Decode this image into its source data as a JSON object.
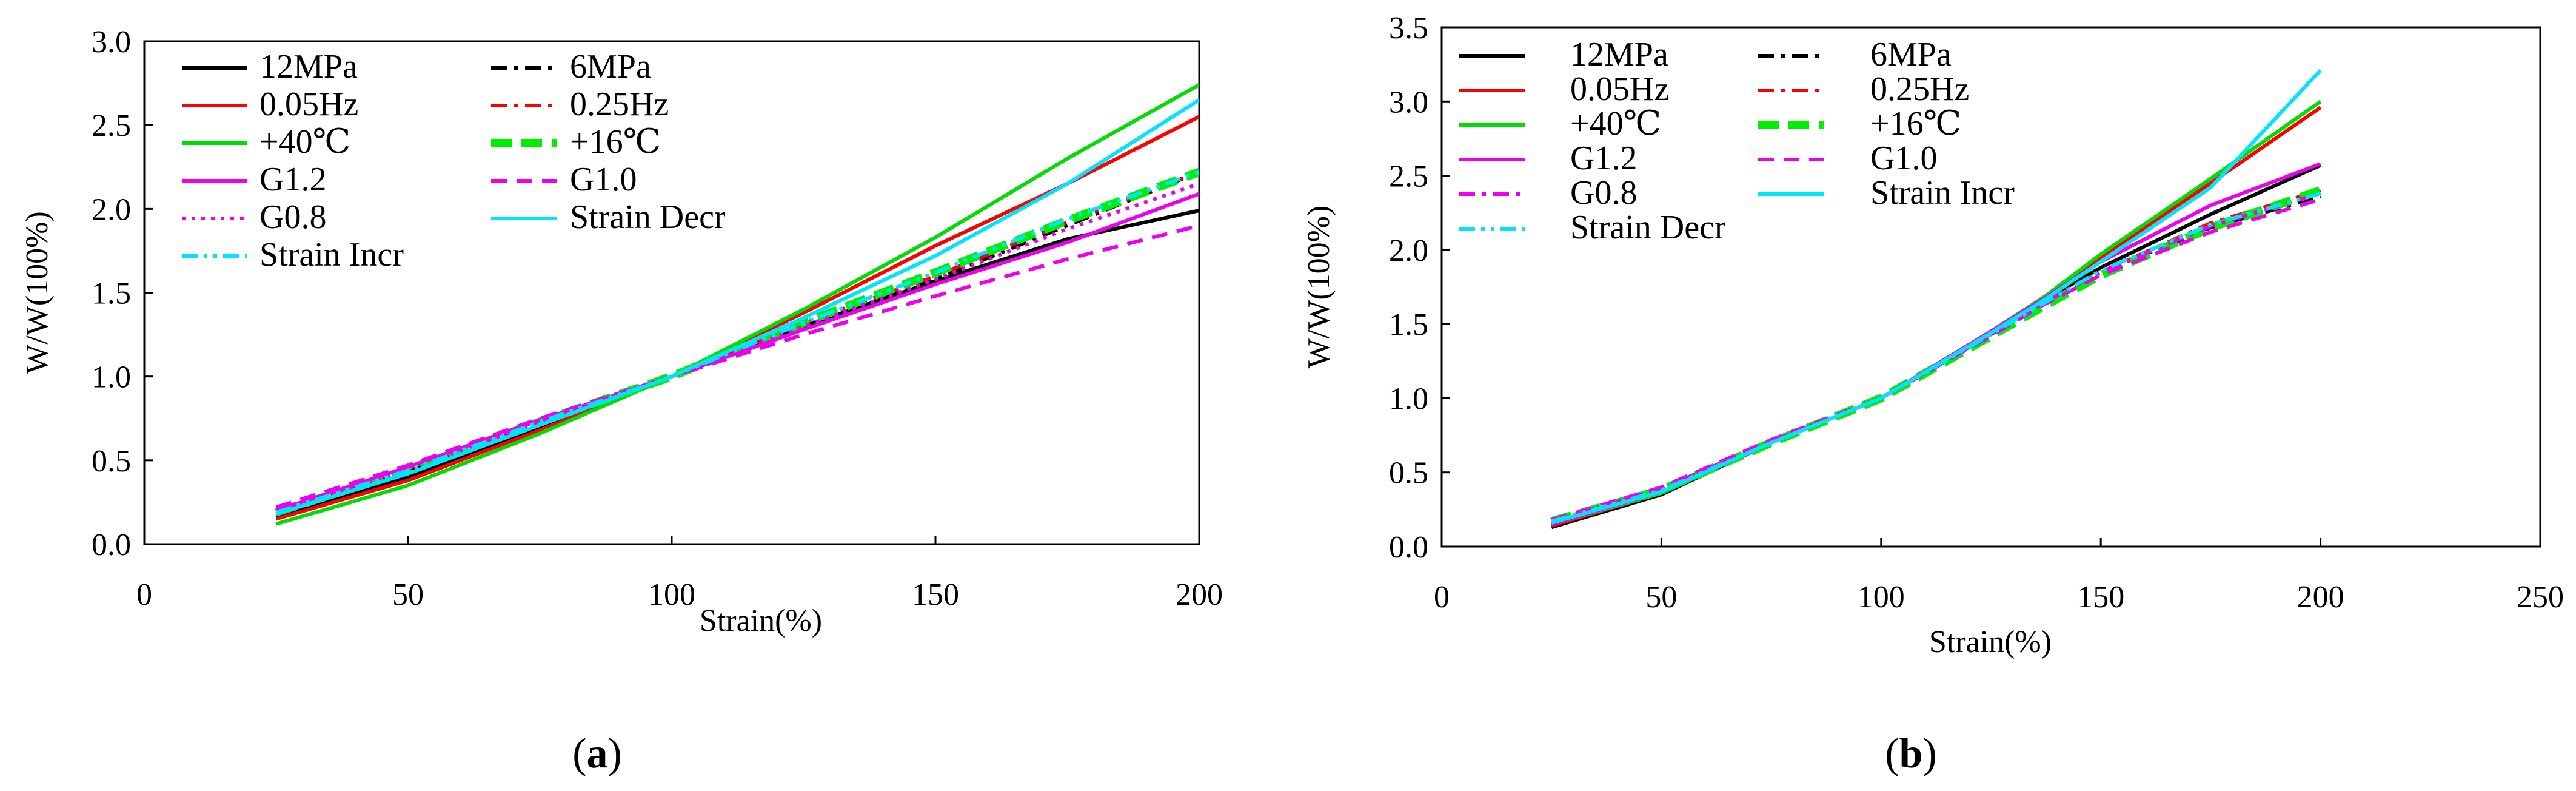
{
  "chart_data": [
    {
      "type": "line",
      "panel_label": "a",
      "xlabel": "Strain(%)",
      "ylabel": "W/W(100%)",
      "xlim": [
        0,
        200
      ],
      "ylim": [
        0,
        3.0
      ],
      "xticks": [
        "0",
        "50",
        "100",
        "150",
        "200"
      ],
      "yticks": [
        "0.0",
        "0.5",
        "1.0",
        "1.5",
        "2.0",
        "2.5",
        "3.0"
      ],
      "xtick_values": [
        0,
        50,
        100,
        150,
        200
      ],
      "ytick_values": [
        0,
        0.5,
        1.0,
        1.5,
        2.0,
        2.5,
        3.0
      ],
      "legend_columns": 2,
      "series": [
        {
          "name": "12MPa",
          "color": "#000000",
          "dash": "solid",
          "x": [
            25,
            50,
            75,
            100,
            125,
            150,
            175,
            200
          ],
          "values": [
            0.17,
            0.4,
            0.7,
            1.0,
            1.3,
            1.57,
            1.82,
            1.99
          ]
        },
        {
          "name": "6MPa",
          "color": "#000000",
          "dash": "dashdot",
          "x": [
            25,
            50,
            75,
            100,
            125,
            150,
            175,
            200
          ],
          "values": [
            0.2,
            0.44,
            0.74,
            1.0,
            1.31,
            1.58,
            1.9,
            2.22
          ]
        },
        {
          "name": "0.05Hz",
          "color": "#ff0000",
          "dash": "solid",
          "x": [
            25,
            50,
            75,
            100,
            125,
            150,
            175,
            200
          ],
          "values": [
            0.15,
            0.38,
            0.68,
            1.0,
            1.38,
            1.78,
            2.15,
            2.55
          ]
        },
        {
          "name": "0.25Hz",
          "color": "#ff0000",
          "dash": "dashdot",
          "x": [
            25,
            50,
            75,
            100,
            125,
            150,
            175,
            200
          ],
          "values": [
            0.2,
            0.45,
            0.74,
            1.0,
            1.32,
            1.6,
            1.92,
            2.22
          ]
        },
        {
          "name": "+40℃",
          "color": "#00dd00",
          "dash": "solid",
          "x": [
            25,
            50,
            75,
            100,
            125,
            150,
            175,
            200
          ],
          "values": [
            0.12,
            0.35,
            0.66,
            1.0,
            1.4,
            1.83,
            2.3,
            2.74
          ]
        },
        {
          "name": "+16℃",
          "color": "#00ee00",
          "dash": "bolddash",
          "x": [
            25,
            50,
            75,
            100,
            125,
            150,
            175,
            200
          ],
          "values": [
            0.19,
            0.44,
            0.73,
            1.0,
            1.32,
            1.62,
            1.93,
            2.22
          ]
        },
        {
          "name": "G1.2",
          "color": "#ee00ee",
          "dash": "solid",
          "x": [
            25,
            50,
            75,
            100,
            125,
            150,
            175,
            200
          ],
          "values": [
            0.2,
            0.46,
            0.74,
            1.0,
            1.28,
            1.55,
            1.8,
            2.09
          ]
        },
        {
          "name": "G1.0",
          "color": "#ee00ee",
          "dash": "dash",
          "x": [
            25,
            50,
            75,
            100,
            125,
            150,
            175,
            200
          ],
          "values": [
            0.22,
            0.47,
            0.75,
            1.0,
            1.25,
            1.48,
            1.7,
            1.9
          ]
        },
        {
          "name": "G0.8",
          "color": "#ee00ee",
          "dash": "dot",
          "x": [
            25,
            50,
            75,
            100,
            125,
            150,
            175,
            200
          ],
          "values": [
            0.19,
            0.44,
            0.73,
            1.0,
            1.3,
            1.58,
            1.88,
            2.15
          ]
        },
        {
          "name": "Strain Decr",
          "color": "#00e5ff",
          "dash": "solid",
          "x": [
            25,
            50,
            75,
            100,
            125,
            150,
            175,
            200
          ],
          "values": [
            0.18,
            0.42,
            0.71,
            1.0,
            1.35,
            1.72,
            2.15,
            2.65
          ]
        },
        {
          "name": "Strain Incr",
          "color": "#00e5ff",
          "dash": "dashdotdot",
          "x": [
            25,
            50,
            75,
            100,
            125,
            150,
            175,
            200
          ],
          "values": [
            0.19,
            0.44,
            0.73,
            1.0,
            1.32,
            1.62,
            1.94,
            2.22
          ]
        }
      ]
    },
    {
      "type": "line",
      "panel_label": "b",
      "xlabel": "Strain(%)",
      "ylabel": "W/W(100%)",
      "xlim": [
        0,
        250
      ],
      "ylim": [
        0,
        3.5
      ],
      "xticks": [
        "0",
        "50",
        "100",
        "150",
        "200",
        "250"
      ],
      "yticks": [
        "0.0",
        "0.5",
        "1.0",
        "1.5",
        "2.0",
        "2.5",
        "3.0",
        "3.5"
      ],
      "xtick_values": [
        0,
        50,
        100,
        150,
        200,
        250
      ],
      "ytick_values": [
        0,
        0.5,
        1.0,
        1.5,
        2.0,
        2.5,
        3.0,
        3.5
      ],
      "legend_columns": 2,
      "series": [
        {
          "name": "12MPa",
          "color": "#000000",
          "dash": "solid",
          "x": [
            25,
            50,
            75,
            100,
            125,
            137,
            150,
            175,
            200
          ],
          "values": [
            0.13,
            0.35,
            0.7,
            1.0,
            1.45,
            1.66,
            1.88,
            2.24,
            2.57
          ]
        },
        {
          "name": "6MPa",
          "color": "#000000",
          "dash": "dashdot",
          "x": [
            25,
            50,
            75,
            100,
            125,
            137,
            150,
            175,
            200
          ],
          "values": [
            0.17,
            0.38,
            0.7,
            1.0,
            1.43,
            1.65,
            1.85,
            2.15,
            2.36
          ]
        },
        {
          "name": "0.05Hz",
          "color": "#ff0000",
          "dash": "solid",
          "x": [
            25,
            50,
            75,
            100,
            125,
            137,
            150,
            175,
            200
          ],
          "values": [
            0.14,
            0.36,
            0.7,
            1.0,
            1.45,
            1.68,
            1.95,
            2.45,
            2.96
          ]
        },
        {
          "name": "0.25Hz",
          "color": "#ff0000",
          "dash": "dashdot",
          "x": [
            25,
            50,
            75,
            100,
            125,
            137,
            150,
            175,
            200
          ],
          "values": [
            0.17,
            0.39,
            0.7,
            1.0,
            1.43,
            1.64,
            1.85,
            2.18,
            2.4
          ]
        },
        {
          "name": "+40℃",
          "color": "#00dd00",
          "dash": "solid",
          "x": [
            25,
            50,
            75,
            100,
            125,
            137,
            150,
            175,
            200
          ],
          "values": [
            0.15,
            0.36,
            0.7,
            1.0,
            1.45,
            1.68,
            1.97,
            2.48,
            3.0
          ]
        },
        {
          "name": "+16℃",
          "color": "#00ee00",
          "dash": "bolddash",
          "x": [
            25,
            50,
            75,
            100,
            125,
            137,
            150,
            175,
            200
          ],
          "values": [
            0.17,
            0.38,
            0.7,
            1.0,
            1.42,
            1.62,
            1.83,
            2.15,
            2.4
          ]
        },
        {
          "name": "G1.2",
          "color": "#ee00ee",
          "dash": "solid",
          "x": [
            25,
            50,
            75,
            100,
            125,
            137,
            150,
            175,
            200
          ],
          "values": [
            0.15,
            0.37,
            0.7,
            1.0,
            1.45,
            1.67,
            1.92,
            2.3,
            2.58
          ]
        },
        {
          "name": "G1.0",
          "color": "#ee00ee",
          "dash": "dash",
          "x": [
            25,
            50,
            75,
            100,
            125,
            137,
            150,
            175,
            200
          ],
          "values": [
            0.18,
            0.4,
            0.72,
            1.0,
            1.42,
            1.63,
            1.83,
            2.12,
            2.34
          ]
        },
        {
          "name": "G0.8",
          "color": "#ee00ee",
          "dash": "dashdot",
          "x": [
            25,
            50,
            75,
            100,
            125,
            137,
            150,
            175,
            200
          ],
          "values": [
            0.17,
            0.39,
            0.71,
            1.0,
            1.43,
            1.64,
            1.85,
            2.16,
            2.38
          ]
        },
        {
          "name": "Strain Incr",
          "color": "#00e5ff",
          "dash": "solid",
          "x": [
            25,
            50,
            75,
            100,
            125,
            137,
            150,
            175,
            200
          ],
          "values": [
            0.16,
            0.37,
            0.7,
            1.0,
            1.44,
            1.66,
            1.92,
            2.42,
            3.21
          ]
        },
        {
          "name": "Strain Decr",
          "color": "#00e5ff",
          "dash": "dashdotdot",
          "x": [
            25,
            50,
            75,
            100,
            125,
            137,
            150,
            175,
            200
          ],
          "values": [
            0.17,
            0.38,
            0.7,
            1.0,
            1.43,
            1.64,
            1.86,
            2.17,
            2.38
          ]
        }
      ]
    }
  ],
  "captions": {
    "a": "(a)",
    "b": "(b)"
  }
}
